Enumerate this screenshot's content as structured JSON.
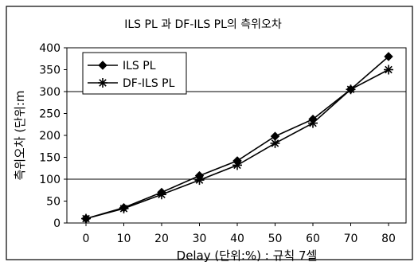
{
  "chart_data": {
    "type": "line",
    "title": "ILS PL 과 DF-ILS PL의 측위오차",
    "xlabel": "Delay (단위:%) : 규칙 7셀",
    "ylabel": "측위오차 (단위:m",
    "x": [
      0,
      10,
      20,
      30,
      40,
      50,
      60,
      70,
      80
    ],
    "xlim": [
      0,
      80
    ],
    "ylim": [
      0,
      400
    ],
    "yticks": [
      0,
      50,
      100,
      150,
      200,
      250,
      300,
      350,
      400
    ],
    "grid_lines_y": [
      100,
      300
    ],
    "legend_position": "top-left",
    "series": [
      {
        "name": "ILS PL",
        "marker": "diamond",
        "values": [
          10,
          35,
          70,
          108,
          142,
          198,
          237,
          305,
          380
        ]
      },
      {
        "name": "DF-ILS PL",
        "marker": "asterisk",
        "values": [
          10,
          33,
          65,
          98,
          132,
          182,
          228,
          305,
          350
        ]
      }
    ]
  }
}
